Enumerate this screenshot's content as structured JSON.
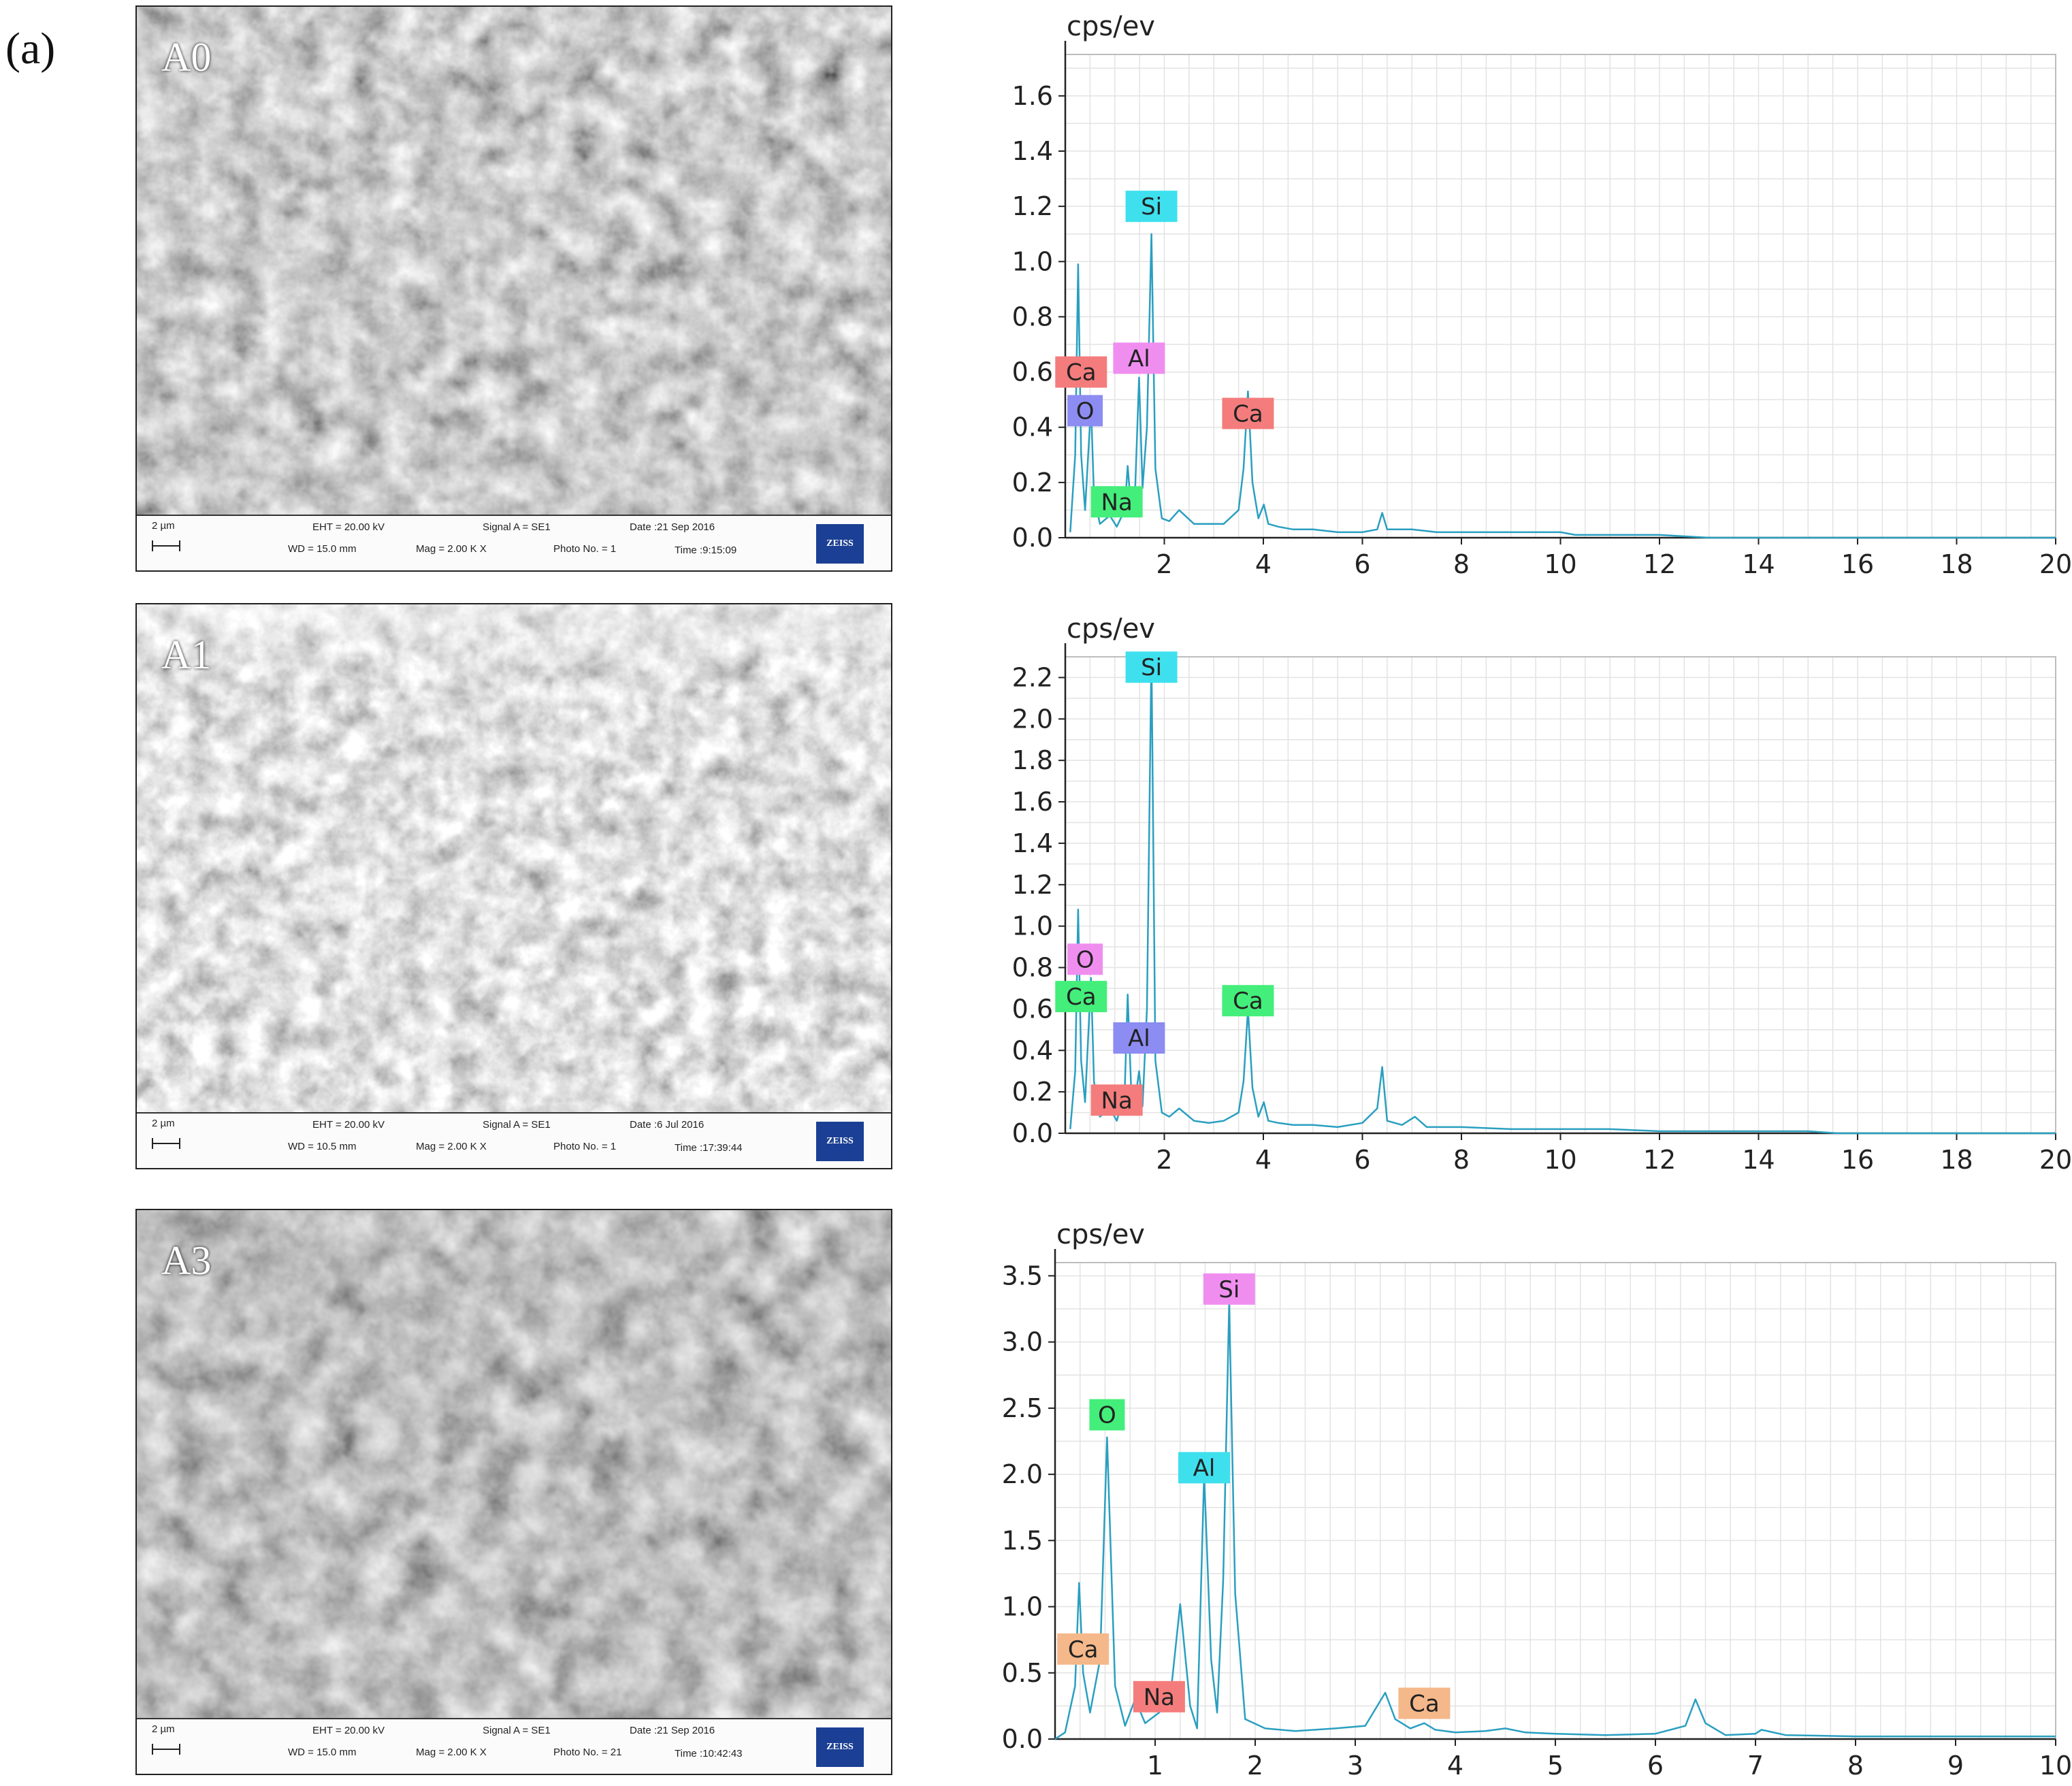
{
  "figure_label": "(a)",
  "samples": [
    {
      "id": "A0",
      "sem": {
        "label": "A0",
        "scale": "2 µm",
        "eht": "EHT = 20.00 kV",
        "wd": "WD = 15.0 mm",
        "signal": "Signal A = SE1",
        "mag": "Mag =  2.00 K X",
        "date": "Date :21 Sep 2016",
        "photo": "Photo No. = 1",
        "time": "Time :9:15:09",
        "logo": "ZEISS"
      },
      "chart_data": {
        "type": "line",
        "ylabel": "cps/ev",
        "xlim": [
          0,
          20
        ],
        "ylim": [
          0,
          1.75
        ],
        "xticks": [
          2,
          4,
          6,
          8,
          10,
          12,
          14,
          16,
          18,
          20
        ],
        "xtick_labels": [
          "2",
          "4",
          "6",
          "8",
          "10",
          "12",
          "14",
          "16",
          "18",
          "20"
        ],
        "yticks": [
          0,
          0.2,
          0.4,
          0.6,
          0.8,
          1.0,
          1.2,
          1.4,
          1.6
        ],
        "ytick_labels": [
          "0.0",
          "0.2",
          "0.4",
          "0.6",
          "0.8",
          "1.0",
          "1.2",
          "1.4",
          "1.6"
        ],
        "grid": true,
        "series": [
          {
            "color": "#2a9fc0",
            "x": [
              0.1,
              0.2,
              0.26,
              0.32,
              0.4,
              0.52,
              0.58,
              0.7,
              0.9,
              1.04,
              1.2,
              1.26,
              1.34,
              1.4,
              1.49,
              1.56,
              1.65,
              1.74,
              1.82,
              1.95,
              2.1,
              2.3,
              2.6,
              2.9,
              3.2,
              3.5,
              3.6,
              3.69,
              3.78,
              3.9,
              4.01,
              4.1,
              4.3,
              4.6,
              5.0,
              5.5,
              6.0,
              6.3,
              6.4,
              6.5,
              7.0,
              7.5,
              8.0,
              9.0,
              10.0,
              10.3,
              11.0,
              12.0,
              13.0,
              20.0
            ],
            "y": [
              0.02,
              0.3,
              0.99,
              0.3,
              0.1,
              0.48,
              0.15,
              0.05,
              0.08,
              0.04,
              0.1,
              0.26,
              0.08,
              0.12,
              0.58,
              0.18,
              0.4,
              1.1,
              0.25,
              0.07,
              0.06,
              0.1,
              0.05,
              0.05,
              0.05,
              0.1,
              0.25,
              0.53,
              0.2,
              0.07,
              0.12,
              0.05,
              0.04,
              0.03,
              0.03,
              0.02,
              0.02,
              0.03,
              0.09,
              0.03,
              0.03,
              0.02,
              0.02,
              0.02,
              0.02,
              0.01,
              0.01,
              0.01,
              0.0,
              0.0
            ]
          }
        ],
        "annotations": [
          {
            "text": "Si",
            "x": 1.74,
            "y": 1.2,
            "color": "#3ee0ee"
          },
          {
            "text": "Al",
            "x": 1.49,
            "y": 0.65,
            "color": "#f08ef0"
          },
          {
            "text": "Ca",
            "x": 0.32,
            "y": 0.6,
            "color": "#f47c7c"
          },
          {
            "text": "O",
            "x": 0.4,
            "y": 0.46,
            "color": "#8c8cf2"
          },
          {
            "text": "Ca",
            "x": 3.69,
            "y": 0.45,
            "color": "#f47c7c"
          },
          {
            "text": "Na",
            "x": 1.04,
            "y": 0.13,
            "color": "#44ee7a"
          }
        ]
      }
    },
    {
      "id": "A1",
      "sem": {
        "label": "A1",
        "scale": "2 µm",
        "eht": "EHT = 20.00 kV",
        "wd": "WD = 10.5 mm",
        "signal": "Signal A = SE1",
        "mag": "Mag =  2.00 K X",
        "date": "Date :6 Jul 2016",
        "photo": "Photo No. = 1",
        "time": "Time :17:39:44",
        "logo": "ZEISS"
      },
      "chart_data": {
        "type": "line",
        "ylabel": "cps/ev",
        "xlim": [
          0,
          20
        ],
        "ylim": [
          0,
          2.3
        ],
        "xticks": [
          2,
          4,
          6,
          8,
          10,
          12,
          14,
          16,
          18,
          20
        ],
        "xtick_labels": [
          "2",
          "4",
          "6",
          "8",
          "10",
          "12",
          "14",
          "16",
          "18",
          "20"
        ],
        "yticks": [
          0,
          0.2,
          0.4,
          0.6,
          0.8,
          1.0,
          1.2,
          1.4,
          1.6,
          1.8,
          2.0,
          2.2
        ],
        "ytick_labels": [
          "0.0",
          "0.2",
          "0.4",
          "0.6",
          "0.8",
          "1.0",
          "1.2",
          "1.4",
          "1.6",
          "1.8",
          "2.0",
          "2.2"
        ],
        "grid": true,
        "series": [
          {
            "color": "#2a9fc0",
            "x": [
              0.1,
              0.2,
              0.26,
              0.32,
              0.4,
              0.52,
              0.58,
              0.7,
              0.9,
              1.04,
              1.2,
              1.26,
              1.34,
              1.4,
              1.49,
              1.56,
              1.65,
              1.74,
              1.82,
              1.95,
              2.1,
              2.3,
              2.6,
              2.9,
              3.2,
              3.5,
              3.6,
              3.69,
              3.78,
              3.9,
              4.01,
              4.1,
              4.3,
              4.6,
              5.0,
              5.5,
              6.0,
              6.3,
              6.4,
              6.5,
              6.8,
              7.06,
              7.3,
              8.0,
              9.0,
              10.0,
              11.0,
              12.0,
              13.0,
              14.0,
              15.0,
              15.6,
              16.0,
              20.0
            ],
            "y": [
              0.02,
              0.3,
              1.08,
              0.35,
              0.15,
              0.75,
              0.25,
              0.08,
              0.12,
              0.06,
              0.2,
              0.67,
              0.15,
              0.14,
              0.3,
              0.13,
              0.6,
              2.32,
              0.35,
              0.1,
              0.08,
              0.12,
              0.06,
              0.05,
              0.06,
              0.1,
              0.25,
              0.6,
              0.22,
              0.08,
              0.15,
              0.06,
              0.05,
              0.04,
              0.04,
              0.03,
              0.05,
              0.12,
              0.32,
              0.06,
              0.04,
              0.08,
              0.03,
              0.03,
              0.02,
              0.02,
              0.02,
              0.01,
              0.01,
              0.01,
              0.01,
              0.0,
              0.0,
              0.0
            ]
          }
        ],
        "annotations": [
          {
            "text": "Si",
            "x": 1.74,
            "y": 2.25,
            "color": "#3ee0ee"
          },
          {
            "text": "O",
            "x": 0.4,
            "y": 0.84,
            "color": "#f08ef0"
          },
          {
            "text": "Ca",
            "x": 0.32,
            "y": 0.66,
            "color": "#44ee7a"
          },
          {
            "text": "Ca",
            "x": 3.69,
            "y": 0.64,
            "color": "#44ee7a"
          },
          {
            "text": "Al",
            "x": 1.49,
            "y": 0.46,
            "color": "#8c8cf2"
          },
          {
            "text": "Na",
            "x": 1.04,
            "y": 0.16,
            "color": "#f47c7c"
          }
        ]
      }
    },
    {
      "id": "A3",
      "sem": {
        "label": "A3",
        "scale": "2 µm",
        "eht": "EHT = 20.00 kV",
        "wd": "WD = 15.0 mm",
        "signal": "Signal A = SE1",
        "mag": "Mag =  2.00 K X",
        "date": "Date :21 Sep 2016",
        "photo": "Photo No. = 21",
        "time": "Time :10:42:43",
        "logo": "ZEISS"
      },
      "chart_data": {
        "type": "line",
        "ylabel": "cps/ev",
        "xlim": [
          0,
          10
        ],
        "ylim": [
          0,
          3.6
        ],
        "xticks": [
          1,
          2,
          3,
          4,
          5,
          6,
          7,
          8,
          9,
          10
        ],
        "xtick_labels": [
          "1",
          "2",
          "3",
          "4",
          "5",
          "6",
          "7",
          "8",
          "9",
          "10"
        ],
        "yticks": [
          0,
          0.5,
          1.0,
          1.5,
          2.0,
          2.5,
          3.0,
          3.5
        ],
        "ytick_labels": [
          "0.0",
          "0.5",
          "1.0",
          "1.5",
          "2.0",
          "2.5",
          "3.0",
          "3.5"
        ],
        "grid": true,
        "series": [
          {
            "color": "#2a9fc0",
            "x": [
              0.0,
              0.1,
              0.2,
              0.24,
              0.28,
              0.35,
              0.45,
              0.52,
              0.6,
              0.7,
              0.8,
              0.9,
              1.04,
              1.15,
              1.25,
              1.35,
              1.42,
              1.49,
              1.56,
              1.62,
              1.68,
              1.74,
              1.8,
              1.9,
              2.1,
              2.4,
              2.8,
              3.1,
              3.3,
              3.4,
              3.55,
              3.69,
              3.8,
              4.0,
              4.3,
              4.5,
              4.7,
              5.0,
              5.5,
              6.0,
              6.3,
              6.4,
              6.5,
              6.7,
              7.0,
              7.06,
              7.3,
              8.0,
              9.0,
              10.0
            ],
            "y": [
              0.0,
              0.05,
              0.4,
              1.18,
              0.5,
              0.2,
              0.6,
              2.28,
              0.4,
              0.1,
              0.3,
              0.12,
              0.2,
              0.3,
              1.02,
              0.25,
              0.08,
              2.0,
              0.6,
              0.2,
              1.2,
              3.3,
              1.1,
              0.15,
              0.08,
              0.06,
              0.08,
              0.1,
              0.35,
              0.15,
              0.08,
              0.12,
              0.07,
              0.05,
              0.06,
              0.08,
              0.05,
              0.04,
              0.03,
              0.04,
              0.1,
              0.3,
              0.12,
              0.03,
              0.04,
              0.07,
              0.03,
              0.02,
              0.02,
              0.02
            ]
          }
        ],
        "annotations": [
          {
            "text": "Si",
            "x": 1.74,
            "y": 3.4,
            "color": "#f08ef0"
          },
          {
            "text": "O",
            "x": 0.52,
            "y": 2.45,
            "color": "#44ee7a"
          },
          {
            "text": "Al",
            "x": 1.49,
            "y": 2.05,
            "color": "#3ee0ee"
          },
          {
            "text": "Ca",
            "x": 0.28,
            "y": 0.68,
            "color": "#f5b88a"
          },
          {
            "text": "Na",
            "x": 1.04,
            "y": 0.32,
            "color": "#f47c7c"
          },
          {
            "text": "Ca",
            "x": 3.69,
            "y": 0.27,
            "color": "#f5b88a"
          }
        ]
      }
    }
  ]
}
